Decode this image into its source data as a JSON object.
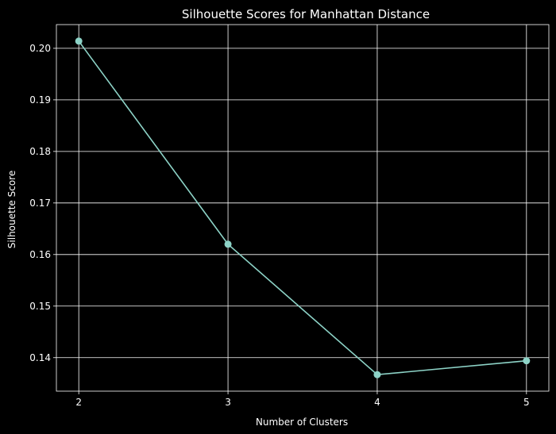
{
  "chart_data": {
    "type": "line",
    "title": "Silhouette Scores for Manhattan Distance",
    "xlabel": "Number of Clusters",
    "ylabel": "Silhouette Score",
    "x": [
      2,
      3,
      4,
      5
    ],
    "series": [
      {
        "values": [
          0.2014,
          0.162,
          0.1367,
          0.1394
        ]
      }
    ],
    "xticks": [
      "2",
      "3",
      "4",
      "5"
    ],
    "yticks": [
      0.14,
      0.15,
      0.16,
      0.17,
      0.18,
      0.19,
      0.2
    ],
    "ytick_labels": [
      "0.14",
      "0.15",
      "0.16",
      "0.17",
      "0.18",
      "0.19",
      "0.20"
    ],
    "xlim": [
      1.85,
      5.15
    ],
    "ylim": [
      0.1335,
      0.2046
    ],
    "grid": true,
    "marker": "circle",
    "colors": {
      "background": "#000000",
      "line": "#8dd3c7",
      "grid": "#ffffff",
      "text": "#ffffff"
    }
  }
}
